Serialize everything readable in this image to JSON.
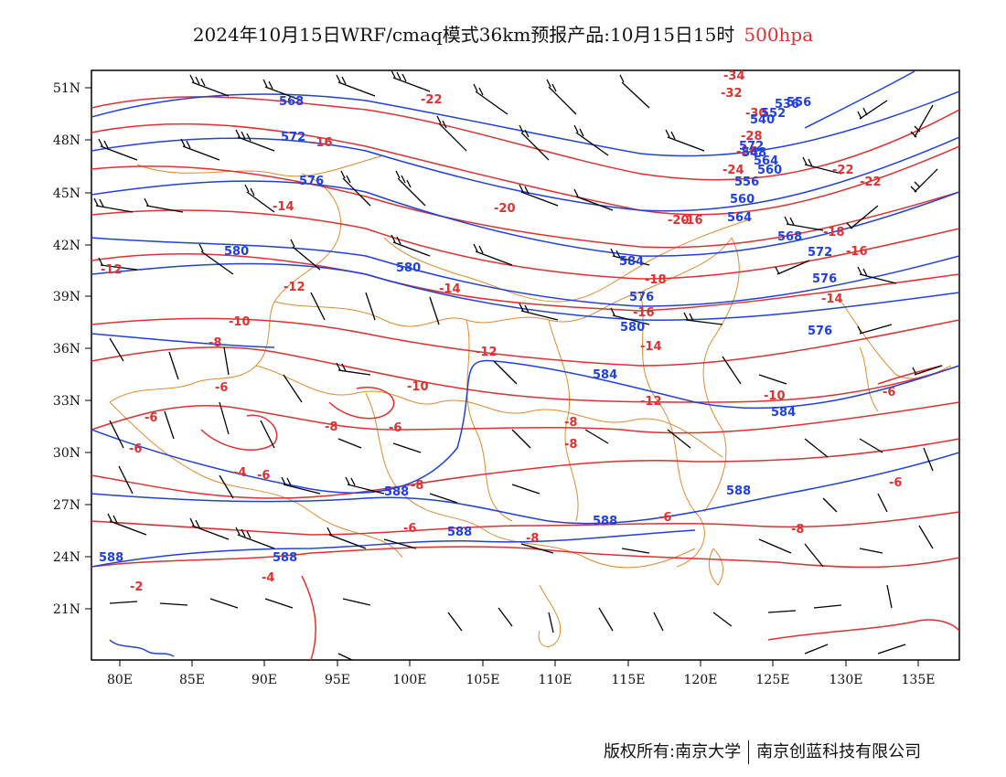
{
  "title": {
    "main": "2024年10月15日WRF/cmaq模式36km预报产品:10月15日15时",
    "level": "500hpa"
  },
  "axes": {
    "lon_ticks": [
      "80E",
      "85E",
      "90E",
      "95E",
      "100E",
      "105E",
      "110E",
      "115E",
      "120E",
      "125E",
      "130E",
      "135E"
    ],
    "lat_ticks": [
      "51N",
      "48N",
      "45N",
      "42N",
      "39N",
      "36N",
      "33N",
      "30N",
      "27N",
      "24N",
      "21N"
    ]
  },
  "colors": {
    "temperature": "#e03030",
    "height": "#2040e0",
    "borders": "#e08a30",
    "wind": "#000000"
  },
  "temperature_labels": [
    "-34",
    "-32",
    "-30",
    "-28",
    "-26",
    "-24",
    "-22",
    "-22",
    "-22",
    "-20",
    "-20",
    "-18",
    "-18",
    "-16",
    "-16",
    "-16",
    "-16",
    "-14",
    "-14",
    "-14",
    "-14",
    "-12",
    "-12",
    "-12",
    "-12",
    "-10",
    "-10",
    "-10",
    "-8",
    "-8",
    "-8",
    "-6",
    "-6",
    "-6",
    "-6",
    "-6",
    "-6",
    "-6",
    "-4",
    "-4",
    "-2",
    "-8",
    "-8",
    "-6",
    "-6",
    "-8",
    "-8"
  ],
  "height_labels": [
    "568",
    "572",
    "576",
    "576",
    "580",
    "588",
    "588",
    "536",
    "540",
    "548",
    "556",
    "560",
    "564",
    "568",
    "572",
    "576",
    "580",
    "584",
    "584",
    "588",
    "588",
    "588",
    "588",
    "584",
    "580",
    "576",
    "572",
    "564",
    "560",
    "556",
    "552"
  ],
  "footer": {
    "left": "版权所有:南京大学",
    "right": "南京创蓝科技有限公司"
  }
}
